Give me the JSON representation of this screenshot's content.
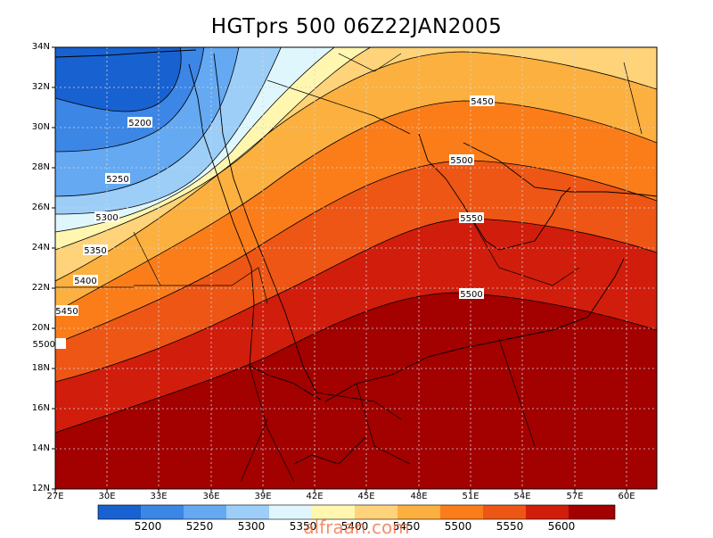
{
  "title": "HGTprs 500 06Z22JAN2005",
  "lat_labels": [
    "34N",
    "32N",
    "30N",
    "28N",
    "26N",
    "24N",
    "22N",
    "20N",
    "18N",
    "16N",
    "14N",
    "12N"
  ],
  "lon_labels": [
    "27E",
    "30E",
    "33E",
    "36E",
    "39E",
    "42E",
    "45E",
    "48E",
    "51E",
    "54E",
    "57E",
    "60E"
  ],
  "colorbar": {
    "labels": [
      "5200",
      "5250",
      "5300",
      "5350",
      "5400",
      "5450",
      "5500",
      "5550",
      "5600"
    ],
    "colors": [
      "#1861d0",
      "#3c86e6",
      "#64a9f2",
      "#9ccef8",
      "#e0f6fd",
      "#fff6b0",
      "#fed37a",
      "#fcb03f",
      "#fb7d19",
      "#ed5614",
      "#d11d0c",
      "#a30000"
    ]
  },
  "contour_labels": [
    "5200",
    "5250",
    "5300",
    "5350",
    "5400",
    "5450",
    "5500",
    "5450",
    "5500",
    "5550",
    "5500"
  ],
  "watermark": "alfraan.com"
}
